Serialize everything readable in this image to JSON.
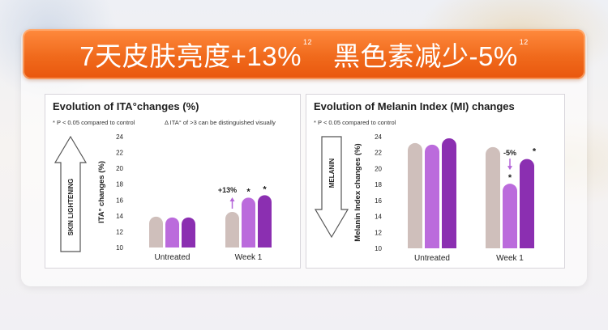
{
  "banner": {
    "left_text": "7天皮肤亮度+13%",
    "left_sup": "12",
    "right_text": "黑色素减少-5%",
    "right_sup": "12",
    "colors": {
      "start": "#ff8a3e",
      "end": "#e9560d",
      "text": "#ffffff"
    }
  },
  "colors": {
    "untreated_bars": [
      "#cfbfbb",
      "#bb6bdc",
      "#8b2fb1"
    ],
    "week1_bars": [
      "#cfbfbb",
      "#bb6bdc",
      "#8b2fb1"
    ],
    "arrow_fill": "#ffffff",
    "arrow_stroke": "#555555",
    "annotation_arrow": "#b566d8"
  },
  "chart_data": [
    {
      "type": "bar",
      "title": "Evolution of ITA°changes (%)",
      "notes": [
        "* P < 0.05 compared to control",
        "Δ ITA° of >3 can be distinguished visually"
      ],
      "ylabel": "ITA° changes (%)",
      "side_arrow_label": "SKIN LIGHTENING",
      "side_arrow_direction": "up",
      "ylim": [
        10,
        24
      ],
      "yticks": [
        10,
        12,
        14,
        16,
        18,
        20,
        22,
        24
      ],
      "categories": [
        "Untreated",
        "Week 1"
      ],
      "series": [
        {
          "name": "bar-1",
          "values": [
            13.9,
            14.5
          ]
        },
        {
          "name": "bar-2",
          "values": [
            13.8,
            16.3
          ]
        },
        {
          "name": "bar-3",
          "values": [
            13.8,
            16.6
          ]
        }
      ],
      "annotations": [
        {
          "text": "+13%",
          "category": "Week 1",
          "series_index": 0
        },
        {
          "text": "*",
          "category": "Week 1",
          "series_index": 1
        },
        {
          "text": "*",
          "category": "Week 1",
          "series_index": 2
        }
      ]
    },
    {
      "type": "bar",
      "title": "Evolution of Melanin Index (MI) changes",
      "notes": [
        "* P < 0.05 compared to control"
      ],
      "ylabel": "Melanin Index changes (%)",
      "side_arrow_label": "MELANIN",
      "side_arrow_direction": "down",
      "ylim": [
        10,
        24
      ],
      "yticks": [
        10,
        12,
        14,
        16,
        18,
        20,
        22,
        24
      ],
      "categories": [
        "Untreated",
        "Week 1"
      ],
      "series": [
        {
          "name": "bar-1",
          "values": [
            23.2,
            22.7
          ]
        },
        {
          "name": "bar-2",
          "values": [
            23.0,
            18.1
          ]
        },
        {
          "name": "bar-3",
          "values": [
            23.8,
            21.2
          ]
        }
      ],
      "annotations": [
        {
          "text": "-5%",
          "category": "Week 1",
          "series_index": 1
        },
        {
          "text": "*",
          "category": "Week 1",
          "series_index": 1
        },
        {
          "text": "*",
          "category": "Week 1",
          "series_index": 2
        }
      ]
    }
  ]
}
